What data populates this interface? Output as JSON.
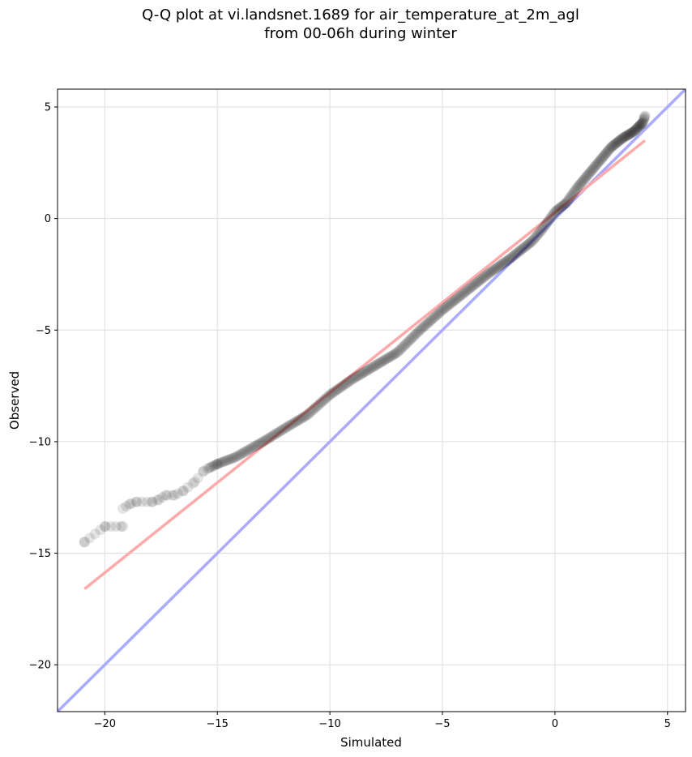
{
  "chart_data": {
    "type": "scatter",
    "title_line1": "Q-Q plot at vi.landsnet.1689 for air_temperature_at_2m_agl",
    "title_line2": "from 00-06h during winter",
    "xlabel": "Simulated",
    "ylabel": "Observed",
    "xlim": [
      -22.1,
      5.8
    ],
    "ylim": [
      -22.1,
      5.8
    ],
    "xticks": [
      -20,
      -15,
      -10,
      -5,
      0,
      5
    ],
    "yticks": [
      -20,
      -15,
      -10,
      -5,
      0,
      5
    ],
    "xtick_labels": [
      "−20",
      "−15",
      "−10",
      "−5",
      "0",
      "5"
    ],
    "ytick_labels": [
      "−20",
      "−15",
      "−10",
      "−5",
      "0",
      "5"
    ],
    "grid": true,
    "identity_line": {
      "color": "#aaaaff",
      "from": [
        -22.1,
        -22.1
      ],
      "to": [
        5.8,
        5.8
      ]
    },
    "fit_line": {
      "color": "#ffaaaa",
      "from": [
        -20.9,
        -16.6
      ],
      "to": [
        4.0,
        3.5
      ]
    },
    "marker_color": "#000000",
    "quantile_curve": [
      [
        -20.9,
        -14.5
      ],
      [
        -20.0,
        -13.8
      ],
      [
        -19.2,
        -13.8
      ],
      [
        -19.2,
        -13.0
      ],
      [
        -18.9,
        -12.8
      ],
      [
        -18.6,
        -12.7
      ],
      [
        -17.9,
        -12.7
      ],
      [
        -17.6,
        -12.6
      ],
      [
        -17.3,
        -12.4
      ],
      [
        -16.9,
        -12.4
      ],
      [
        -16.5,
        -12.2
      ],
      [
        -16.0,
        -11.8
      ],
      [
        -15.6,
        -11.3
      ],
      [
        -15.0,
        -11.0
      ],
      [
        -14.2,
        -10.7
      ],
      [
        -13.5,
        -10.3
      ],
      [
        -12.8,
        -9.9
      ],
      [
        -12.0,
        -9.4
      ],
      [
        -11.0,
        -8.8
      ],
      [
        -10.0,
        -7.9
      ],
      [
        -9.0,
        -7.2
      ],
      [
        -8.0,
        -6.6
      ],
      [
        -7.0,
        -6.0
      ],
      [
        -6.0,
        -5.0
      ],
      [
        -5.0,
        -4.1
      ],
      [
        -4.0,
        -3.3
      ],
      [
        -3.0,
        -2.5
      ],
      [
        -2.0,
        -1.8
      ],
      [
        -1.0,
        -1.0
      ],
      [
        -0.5,
        -0.4
      ],
      [
        0.0,
        0.3
      ],
      [
        0.5,
        0.7
      ],
      [
        1.0,
        1.4
      ],
      [
        1.5,
        2.0
      ],
      [
        2.0,
        2.6
      ],
      [
        2.5,
        3.2
      ],
      [
        3.0,
        3.6
      ],
      [
        3.5,
        3.9
      ],
      [
        3.9,
        4.3
      ],
      [
        4.0,
        4.6
      ]
    ],
    "n_points": 400
  }
}
